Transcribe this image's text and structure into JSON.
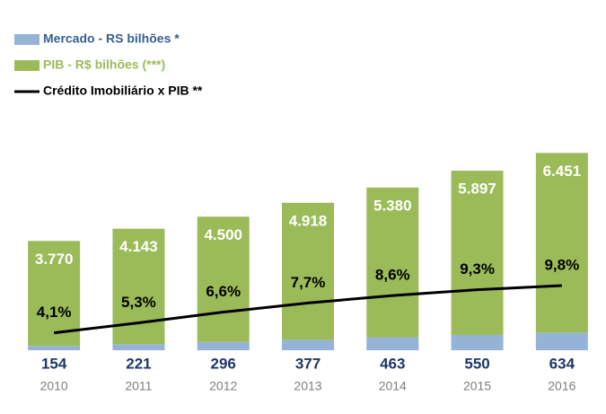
{
  "chart_data": {
    "type": "bar",
    "categories": [
      "2010",
      "2011",
      "2012",
      "2013",
      "2014",
      "2015",
      "2016"
    ],
    "stacked": true,
    "series": [
      {
        "name": "Mercado - RS bilhões *",
        "color": "#95b3d7",
        "label_color": "#1f3864",
        "values": [
          154,
          221,
          296,
          377,
          463,
          550,
          634
        ]
      },
      {
        "name": "PIB - R$ bilhões (***)",
        "color": "#9bbb59",
        "label_color": "#ffffff",
        "values": [
          3770,
          4143,
          4500,
          4918,
          5380,
          5897,
          6451
        ],
        "value_labels": [
          "3.770",
          "4.143",
          "4.500",
          "4.918",
          "5.380",
          "5.897",
          "6.451"
        ]
      },
      {
        "name": "Crédito Imobiliário x PIB **",
        "type": "line",
        "axis": "y2",
        "color": "#000000",
        "label_color": "#000000",
        "values": [
          4.1,
          5.3,
          6.6,
          7.7,
          8.6,
          9.3,
          9.8
        ],
        "value_labels": [
          "4,1%",
          "5,3%",
          "6,6%",
          "7,7%",
          "8,6%",
          "9,3%",
          "9,8%"
        ]
      }
    ],
    "ylim": [
      0,
      7740
    ],
    "y2lim": [
      2,
      28
    ]
  }
}
